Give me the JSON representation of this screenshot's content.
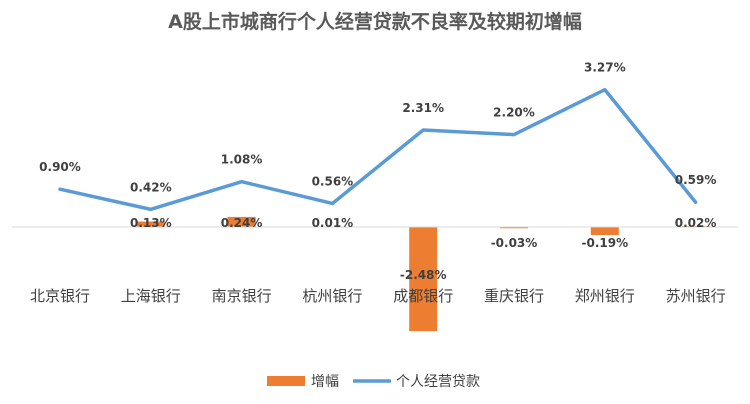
{
  "chart_data": {
    "type": "bar+line",
    "title": "A股上市城商行个人经营贷款不良率及较期初增幅",
    "categories": [
      "北京银行",
      "上海银行",
      "南京银行",
      "杭州银行",
      "成都银行",
      "重庆银行",
      "郑州银行",
      "苏州银行"
    ],
    "series": [
      {
        "name": "增幅",
        "type": "bar",
        "color": "#ED7D31",
        "values": [
          0.0,
          0.13,
          0.24,
          0.01,
          -2.48,
          -0.03,
          -0.19,
          0.02
        ],
        "labels": [
          "",
          "0.13%",
          "0.24%",
          "0.01%",
          "-2.48%",
          "-0.03%",
          "-0.19%",
          "0.02%"
        ]
      },
      {
        "name": "个人经营贷款",
        "type": "line",
        "color": "#5B9BD5",
        "values": [
          0.9,
          0.42,
          1.08,
          0.56,
          2.31,
          2.2,
          3.27,
          0.59
        ],
        "labels": [
          "0.90%",
          "0.42%",
          "1.08%",
          "0.56%",
          "2.31%",
          "2.20%",
          "3.27%",
          "0.59%"
        ]
      }
    ],
    "ylim": [
      -2.5,
      3.5
    ],
    "grid": false,
    "legend_position": "bottom"
  }
}
